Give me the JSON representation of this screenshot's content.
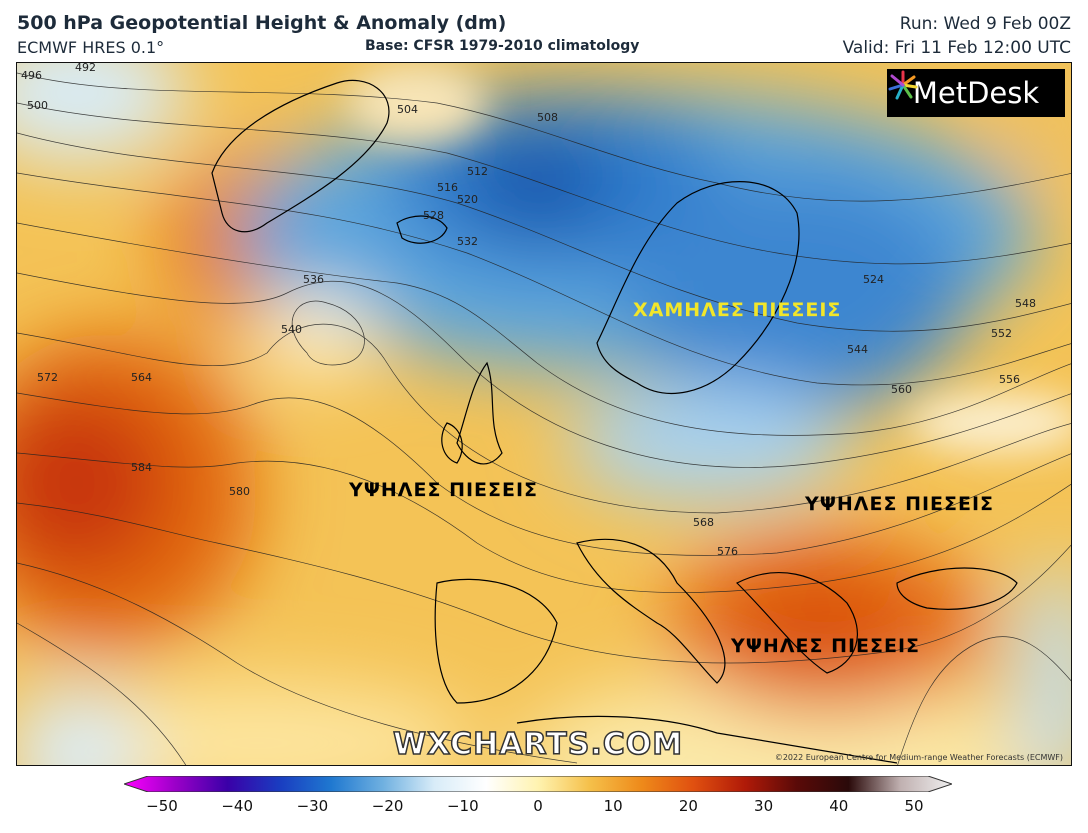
{
  "header": {
    "title": "500 hPa Geopotential Height & Anomaly (dm)",
    "model": "ECMWF HRES 0.1°",
    "base": "Base: CFSR 1979-2010 climatology",
    "run": "Run: Wed 9 Feb 00Z",
    "valid": "Valid: Fri 11 Feb 12:00 UTC"
  },
  "logo": {
    "text": "MetDesk"
  },
  "watermark": "WXCHARTS.COM",
  "copyright": "©2022 European Centre for Medium-range Weather Forecasts (ECMWF)",
  "annotations": {
    "low": "ΧΑΜΗΛΕΣ ΠΙΕΣΕΙΣ",
    "high_west": "ΥΨΗΛΕΣ ΠΙΕΣΕΙΣ",
    "high_east": "ΥΨΗΛΕΣ ΠΙΕΣΕΙΣ",
    "high_greece": "ΥΨΗΛΕΣ ΠΙΕΣΕΙΣ"
  },
  "colors": {
    "low_label": "#f2e62a",
    "high_label": "#000000"
  },
  "contour_labels": [
    "492",
    "496",
    "500",
    "504",
    "508",
    "512",
    "516",
    "520",
    "524",
    "528",
    "532",
    "536",
    "540",
    "544",
    "548",
    "552",
    "556",
    "560",
    "564",
    "568",
    "572",
    "576",
    "580",
    "584"
  ],
  "colorbar": {
    "ticks": [
      "−50",
      "−40",
      "−30",
      "−20",
      "−10",
      "0",
      "10",
      "20",
      "30",
      "40",
      "50"
    ],
    "range": [
      -50,
      50
    ],
    "stops": [
      "#ff00ff",
      "#9a00c8",
      "#3a00a8",
      "#1a3cc0",
      "#1f78d0",
      "#6fb0e0",
      "#d8ecf8",
      "#ffffff",
      "#fff3b0",
      "#f5c04a",
      "#ee8a1a",
      "#e05010",
      "#b01a08",
      "#5a0a08",
      "#2a0a0a",
      "#c0b0b0",
      "#f0f0f0"
    ]
  }
}
